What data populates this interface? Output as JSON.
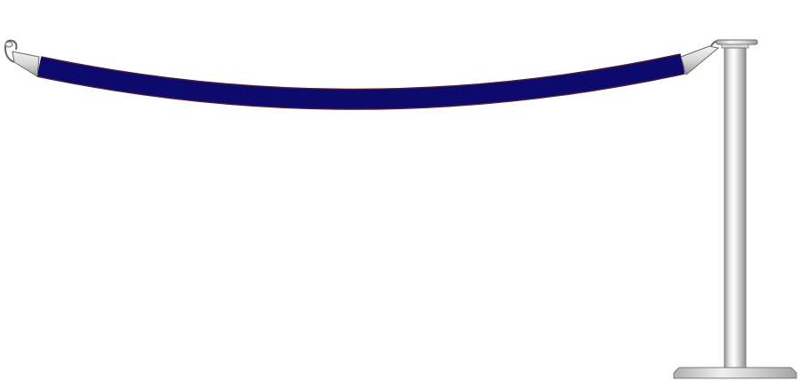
{
  "scene": {
    "background": "#ffffff",
    "rope_color": "#0d0a6e",
    "rope_edge_color": "#4a1a3a",
    "metal_light": "#f2f2f2",
    "metal_mid": "#cfcfcf",
    "metal_dark": "#8c8c8c",
    "outline": "#555555",
    "objects": [
      "velvet-rope",
      "left-rope-end-hook",
      "right-rope-end-hook",
      "stanchion-post",
      "stanchion-base",
      "stanchion-top-cap"
    ]
  }
}
